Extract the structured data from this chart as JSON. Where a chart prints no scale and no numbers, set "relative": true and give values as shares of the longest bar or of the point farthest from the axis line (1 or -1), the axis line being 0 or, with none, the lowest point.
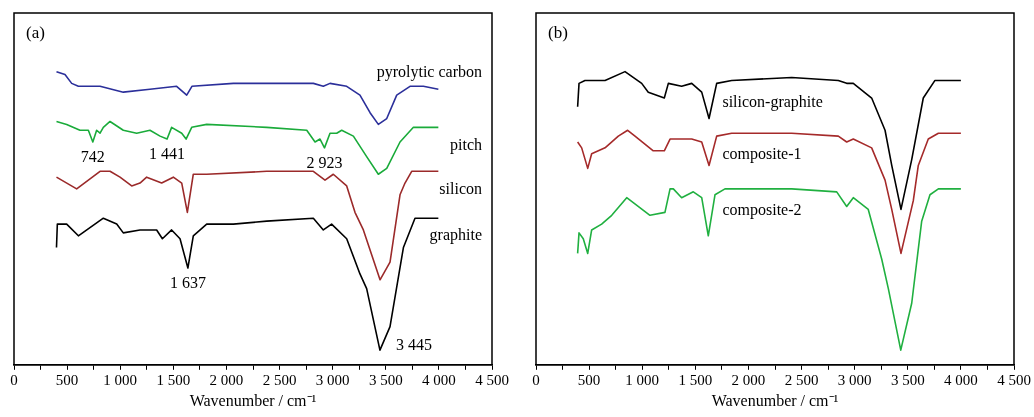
{
  "chart_data": [
    {
      "type": "line",
      "title": "(a)",
      "xlabel": "Wavenumber / cm⁻¹",
      "relative": true,
      "marker": "none",
      "tick_labels": "x",
      "grid": false,
      "xlim": [
        0,
        4500
      ],
      "xticks": [
        0,
        {
          "value": 250,
          "label": null
        },
        {
          "value": 500,
          "label": "500"
        },
        {
          "value": 750,
          "label": null
        },
        {
          "value": 1000,
          "label": "1 000"
        },
        {
          "value": 1250,
          "label": null
        },
        {
          "value": 1500,
          "label": "1 500"
        },
        {
          "value": 1750,
          "label": null
        },
        {
          "value": 2000,
          "label": "2 000"
        },
        {
          "value": 2250,
          "label": null
        },
        {
          "value": 2500,
          "label": "2 500"
        },
        {
          "value": 2750,
          "label": null
        },
        {
          "value": 3000,
          "label": "3 000"
        },
        {
          "value": 3250,
          "label": null
        },
        {
          "value": 3500,
          "label": "3 500"
        },
        {
          "value": 3750,
          "label": null
        },
        {
          "value": 4000,
          "label": "4 000"
        },
        {
          "value": 4250,
          "label": null
        },
        {
          "value": 4500,
          "label": "4 500"
        }
      ],
      "series": [
        {
          "name": "pyrolytic carbon",
          "color": "#2b2f9a",
          "x": [
            400,
            480,
            543,
            606,
            810,
            1029,
            1280,
            1531,
            1626,
            1675,
            2065,
            2379,
            2818,
            2912,
            2975,
            3132,
            3257,
            3352,
            3430,
            3509,
            3603,
            3728,
            3854,
            3995
          ],
          "values": [
            1.0,
            0.99,
            0.96,
            0.95,
            0.95,
            0.93,
            0.94,
            0.95,
            0.92,
            0.95,
            0.96,
            0.96,
            0.96,
            0.95,
            0.96,
            0.95,
            0.92,
            0.86,
            0.82,
            0.84,
            0.92,
            0.95,
            0.95,
            0.94
          ]
        },
        {
          "name": "pitch",
          "color": "#1aab3a",
          "x": [
            400,
            496,
            621,
            700,
            742,
            778,
            810,
            841,
            904,
            1029,
            1155,
            1280,
            1375,
            1441,
            1484,
            1579,
            1620,
            1673,
            1814,
            2379,
            2756,
            2834,
            2881,
            2923,
            2975,
            3038,
            3085,
            3195,
            3320,
            3430,
            3509,
            3634,
            3760,
            3995
          ],
          "values": [
            0.83,
            0.82,
            0.8,
            0.8,
            0.76,
            0.8,
            0.79,
            0.81,
            0.83,
            0.8,
            0.79,
            0.8,
            0.78,
            0.77,
            0.81,
            0.79,
            0.77,
            0.81,
            0.82,
            0.81,
            0.8,
            0.76,
            0.77,
            0.74,
            0.79,
            0.79,
            0.8,
            0.78,
            0.71,
            0.65,
            0.67,
            0.76,
            0.81,
            0.81
          ]
        },
        {
          "name": "silicon",
          "color": "#9b2a2a",
          "x": [
            400,
            590,
            810,
            904,
            998,
            1108,
            1186,
            1249,
            1390,
            1500,
            1579,
            1632,
            1688,
            1814,
            2379,
            2818,
            2928,
            3006,
            3132,
            3210,
            3289,
            3446,
            3540,
            3634,
            3681,
            3744,
            3995
          ],
          "values": [
            0.64,
            0.6,
            0.66,
            0.66,
            0.64,
            0.61,
            0.62,
            0.64,
            0.62,
            0.64,
            0.62,
            0.52,
            0.65,
            0.65,
            0.66,
            0.66,
            0.63,
            0.65,
            0.61,
            0.52,
            0.46,
            0.29,
            0.35,
            0.58,
            0.62,
            0.66,
            0.66
          ]
        },
        {
          "name": "graphite",
          "color": "#000000",
          "x": [
            400,
            408,
            449,
            496,
            606,
            841,
            967,
            1029,
            1186,
            1343,
            1397,
            1484,
            1563,
            1637,
            1688,
            1814,
            2065,
            2379,
            2818,
            2912,
            2990,
            3132,
            3257,
            3320,
            3445,
            3540,
            3666,
            3775,
            3995
          ],
          "values": [
            0.4,
            0.48,
            0.48,
            0.48,
            0.44,
            0.5,
            0.48,
            0.45,
            0.46,
            0.46,
            0.43,
            0.46,
            0.43,
            0.33,
            0.44,
            0.48,
            0.48,
            0.49,
            0.5,
            0.46,
            0.48,
            0.43,
            0.31,
            0.26,
            0.05,
            0.13,
            0.4,
            0.5,
            0.5
          ]
        }
      ],
      "annotations": [
        {
          "text": "742",
          "x": 742,
          "y": 0.76
        },
        {
          "text": "1 441",
          "x": 1441,
          "y": 0.77
        },
        {
          "text": "2 923",
          "x": 2923,
          "y": 0.74
        },
        {
          "text": "1 637",
          "x": 1637,
          "y": 0.33
        },
        {
          "text": "3 445",
          "x": 3445,
          "y": 0.05
        }
      ]
    },
    {
      "type": "line",
      "title": "(b)",
      "xlabel": "Wavenumber / cm⁻¹",
      "relative": true,
      "marker": "none",
      "tick_labels": "x",
      "grid": false,
      "xlim": [
        0,
        4500
      ],
      "xticks": [
        0,
        {
          "value": 250,
          "label": null
        },
        {
          "value": 500,
          "label": "500"
        },
        {
          "value": 750,
          "label": null
        },
        {
          "value": 1000,
          "label": "1 000"
        },
        {
          "value": 1250,
          "label": null
        },
        {
          "value": 1500,
          "label": "1 500"
        },
        {
          "value": 1750,
          "label": null
        },
        {
          "value": 2000,
          "label": "2 000"
        },
        {
          "value": 2250,
          "label": null
        },
        {
          "value": 2500,
          "label": "2 500"
        },
        {
          "value": 2750,
          "label": null
        },
        {
          "value": 3000,
          "label": "3 000"
        },
        {
          "value": 3250,
          "label": null
        },
        {
          "value": 3500,
          "label": "3 500"
        },
        {
          "value": 3750,
          "label": null
        },
        {
          "value": 4000,
          "label": "4 000"
        },
        {
          "value": 4250,
          "label": null
        },
        {
          "value": 4500,
          "label": "4 500"
        }
      ],
      "series": [
        {
          "name": "silicon-graphite",
          "color": "#000000",
          "x": [
            392,
            405,
            461,
            650,
            838,
            995,
            1057,
            1208,
            1246,
            1371,
            1466,
            1560,
            1629,
            1701,
            1842,
            2407,
            2846,
            2925,
            2987,
            3160,
            3286,
            3349,
            3436,
            3537,
            3646,
            3756,
            4000
          ],
          "values": [
            0.88,
            0.96,
            0.97,
            0.97,
            1.0,
            0.96,
            0.93,
            0.91,
            0.96,
            0.95,
            0.96,
            0.93,
            0.84,
            0.96,
            0.97,
            0.98,
            0.97,
            0.96,
            0.96,
            0.91,
            0.8,
            0.68,
            0.53,
            0.7,
            0.91,
            0.97,
            0.97
          ]
        },
        {
          "name": "composite-1",
          "color": "#a52a2a",
          "x": [
            392,
            430,
            487,
            524,
            650,
            775,
            863,
            932,
            1104,
            1208,
            1262,
            1466,
            1560,
            1629,
            1701,
            1842,
            2407,
            2846,
            2925,
            2987,
            3160,
            3286,
            3349,
            3436,
            3552,
            3599,
            3693,
            3788,
            4000
          ],
          "values": [
            0.76,
            0.74,
            0.67,
            0.72,
            0.74,
            0.78,
            0.8,
            0.78,
            0.73,
            0.73,
            0.77,
            0.77,
            0.76,
            0.68,
            0.78,
            0.79,
            0.79,
            0.78,
            0.76,
            0.77,
            0.74,
            0.63,
            0.53,
            0.38,
            0.56,
            0.68,
            0.77,
            0.79,
            0.79
          ]
        },
        {
          "name": "composite-2",
          "color": "#20b040",
          "x": [
            392,
            405,
            445,
            487,
            524,
            618,
            713,
            854,
            1073,
            1214,
            1262,
            1293,
            1371,
            1481,
            1560,
            1622,
            1685,
            1779,
            2407,
            2831,
            2925,
            2987,
            3128,
            3255,
            3317,
            3434,
            3537,
            3631,
            3709,
            3788,
            4000
          ],
          "values": [
            0.38,
            0.45,
            0.43,
            0.38,
            0.46,
            0.48,
            0.51,
            0.57,
            0.51,
            0.52,
            0.6,
            0.6,
            0.57,
            0.59,
            0.57,
            0.44,
            0.58,
            0.6,
            0.6,
            0.59,
            0.54,
            0.57,
            0.53,
            0.36,
            0.26,
            0.05,
            0.21,
            0.49,
            0.58,
            0.6,
            0.6
          ]
        }
      ]
    }
  ]
}
